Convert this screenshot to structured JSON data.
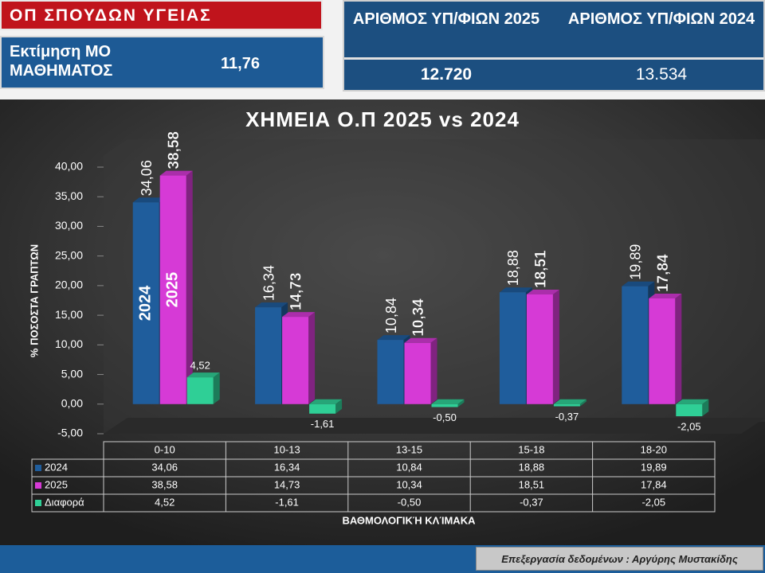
{
  "header": {
    "title": "ΟΠ ΣΠΟΥΔΩΝ ΥΓΕΙΑΣ",
    "estimate_label": "Εκτίμηση ΜΟ ΜΑΘΗΜΑΤΟΣ",
    "estimate_value": "11,76",
    "candidates_2025_label": "ΑΡΙΘΜΟΣ ΥΠ/ΦΙΩΝ 2025",
    "candidates_2025": "12.720",
    "candidates_2024_label": "ΑΡΙΘΜΟΣ ΥΠ/ΦΙΩΝ 2024",
    "candidates_2024": "13.534"
  },
  "footer": "Επεξεργασία δεδομένων : Αργύρης Μυστακίδης",
  "chart_data": {
    "type": "bar",
    "title": "ΧΗΜΕΙΑ Ο.Π 2025 vs 2024",
    "y_label": "% ΠΟΣΟΣΤΑ ΓΡΑΠΤΩΝ",
    "x_label": "ΒΑΘΜΟΛΟΓΙΚΉ ΚΛΊΜΑΚΑ",
    "categories": [
      "0-10",
      "10-13",
      "13-15",
      "15-18",
      "18-20"
    ],
    "series": [
      {
        "name": "2024",
        "color": "#1f5d9c",
        "values": [
          34.06,
          16.34,
          10.84,
          18.88,
          19.89
        ],
        "value_labels": [
          "34,06",
          "16,34",
          "10,84",
          "18,88",
          "19,89"
        ]
      },
      {
        "name": "2025",
        "color": "#d63ad6",
        "values": [
          38.58,
          14.73,
          10.34,
          18.51,
          17.84
        ],
        "value_labels": [
          "38,58",
          "14,73",
          "10,34",
          "18,51",
          "17,84"
        ]
      },
      {
        "name": "Διαφορά",
        "color": "#2fcf96",
        "values": [
          4.52,
          -1.61,
          -0.5,
          -0.37,
          -2.05
        ],
        "value_labels": [
          "4,52",
          "-1,61",
          "-0,50",
          "-0,37",
          "-2,05"
        ]
      }
    ],
    "ylim": [
      -5,
      40
    ],
    "yticks": [
      {
        "value": -5,
        "label": "-5,00"
      },
      {
        "value": 0,
        "label": "0,00"
      },
      {
        "value": 5,
        "label": "5,00"
      },
      {
        "value": 10,
        "label": "10,00"
      },
      {
        "value": 15,
        "label": "15,00"
      },
      {
        "value": 20,
        "label": "20,00"
      },
      {
        "value": 25,
        "label": "25,00"
      },
      {
        "value": 30,
        "label": "30,00"
      },
      {
        "value": 35,
        "label": "35,00"
      },
      {
        "value": 40,
        "label": "40,00"
      }
    ],
    "grid": false
  }
}
